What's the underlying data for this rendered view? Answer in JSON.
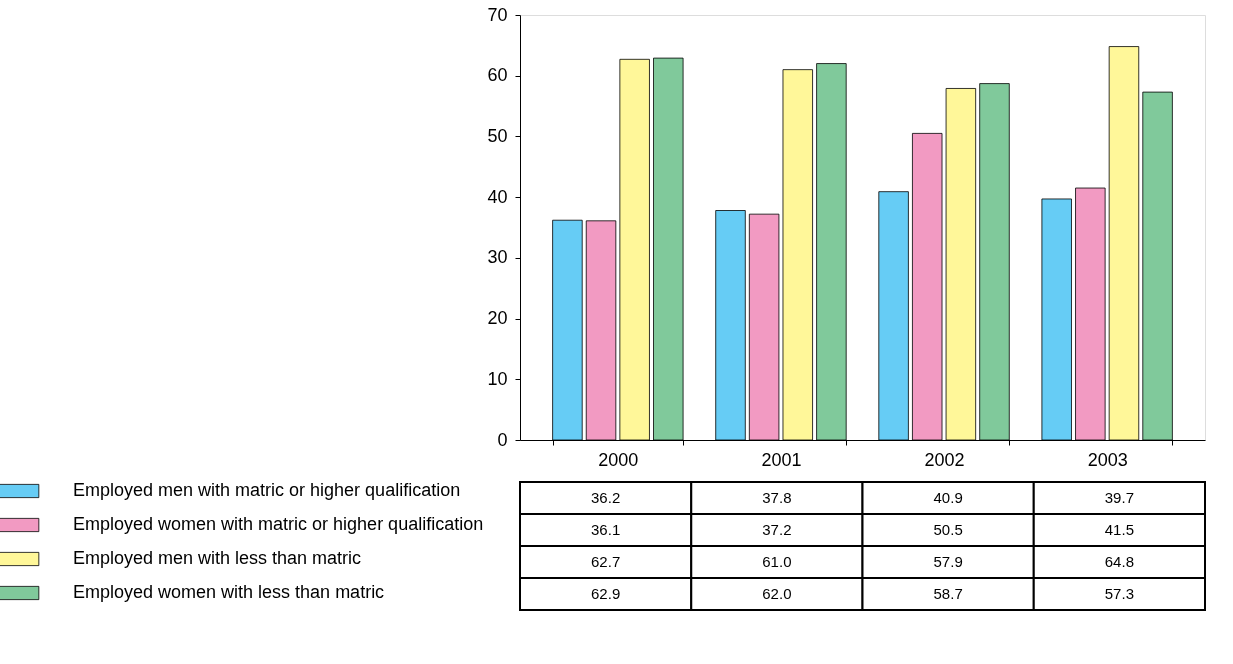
{
  "chart_data": {
    "type": "bar",
    "categories": [
      "2000",
      "2001",
      "2002",
      "2003"
    ],
    "series": [
      {
        "name": "Employed men with matric or higher qualification",
        "color": "#66ccf5",
        "values": [
          36.2,
          37.8,
          40.9,
          39.7
        ],
        "value_labels": [
          "36.2",
          "37.8",
          "40.9",
          "39.7"
        ]
      },
      {
        "name": "Employed women with matric or higher qualification",
        "color": "#f29ac2",
        "values": [
          36.1,
          37.2,
          50.5,
          41.5
        ],
        "value_labels": [
          "36.1",
          "37.2",
          "50.5",
          "41.5"
        ]
      },
      {
        "name": "Employed men with less than matric",
        "color": "#fff799",
        "values": [
          62.7,
          61.0,
          57.9,
          64.8
        ],
        "value_labels": [
          "62.7",
          "61.0",
          "57.9",
          "64.8"
        ]
      },
      {
        "name": "Employed women with less than matric",
        "color": "#80c99b",
        "values": [
          62.9,
          62.0,
          58.7,
          57.3
        ],
        "value_labels": [
          "62.9",
          "62.0",
          "58.7",
          "57.3"
        ]
      }
    ],
    "ylim": [
      0,
      70
    ],
    "yticks": [
      0,
      10,
      20,
      30,
      40,
      50,
      60,
      70
    ],
    "legend": "bottom left"
  }
}
